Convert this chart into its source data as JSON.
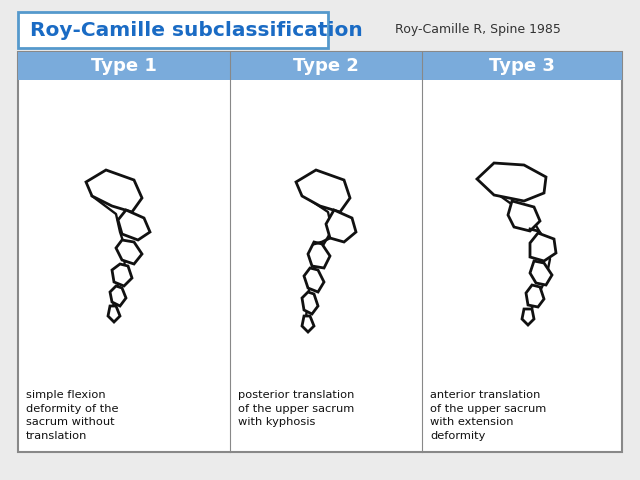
{
  "title": "Roy-Camille subclassification",
  "citation": "Roy-Camille R, Spine 1985",
  "types": [
    "Type 1",
    "Type 2",
    "Type 3"
  ],
  "descriptions": [
    "simple flexion\ndeformity of the\nsacrum without\ntranslation",
    "posterior translation\nof the upper sacrum\nwith kyphosis",
    "anterior translation\nof the upper sacrum\nwith extension\ndeformity"
  ],
  "header_color": "#7AABDB",
  "header_text_color": "#FFFFFF",
  "title_text_color": "#1A6BC4",
  "border_color": "#999999",
  "title_border_color": "#5599CC",
  "bg_color": "#FFFFFF",
  "outer_bg": "#EBEBEB",
  "spine_color": "#111111",
  "spine_lw": 2.0
}
